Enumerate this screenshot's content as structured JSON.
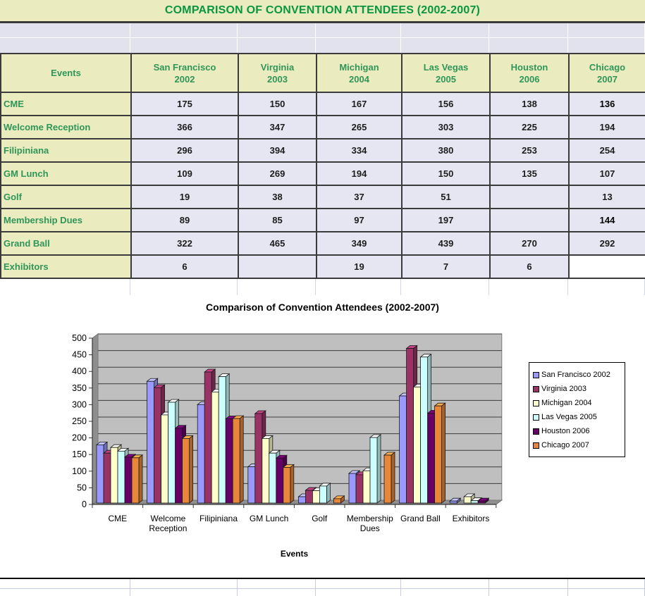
{
  "title": "COMPARISON OF CONVENTION ATTENDEES (2002-2007)",
  "colors": {
    "title_text": "#0A9640",
    "table_text": "#2F9658",
    "header_bg": "#EAEBBF",
    "cell_bg": "#E6E6F2",
    "table_border": "#3B3B3B",
    "plot_wall": "#BFBFBF",
    "plot_floor": "#8F8F8F"
  },
  "table": {
    "corner_label": "Events",
    "columns": [
      {
        "city": "San Francisco",
        "year": "2002"
      },
      {
        "city": "Virginia",
        "year": "2003"
      },
      {
        "city": "Michigan",
        "year": "2004"
      },
      {
        "city": "Las Vegas",
        "year": "2005"
      },
      {
        "city": "Houston",
        "year": "2006"
      },
      {
        "city": "Chicago",
        "year": "2007"
      }
    ],
    "rows": [
      {
        "label": "CME",
        "values": [
          "175",
          "150",
          "167",
          "156",
          "138",
          "136"
        ]
      },
      {
        "label": "Welcome Reception",
        "values": [
          "366",
          "347",
          "265",
          "303",
          "225",
          "194"
        ]
      },
      {
        "label": "Filipiniana",
        "values": [
          "296",
          "394",
          "334",
          "380",
          "253",
          "254"
        ]
      },
      {
        "label": "GM Lunch",
        "values": [
          "109",
          "269",
          "194",
          "150",
          "135",
          "107"
        ]
      },
      {
        "label": "Golf",
        "values": [
          "19",
          "38",
          "37",
          "51",
          "",
          "13"
        ]
      },
      {
        "label": "Membership Dues",
        "values": [
          "89",
          "85",
          "97",
          "197",
          "",
          "144"
        ]
      },
      {
        "label": "Grand Ball",
        "values": [
          "322",
          "465",
          "349",
          "439",
          "270",
          "292"
        ]
      },
      {
        "label": "Exhibitors",
        "values": [
          "6",
          "",
          "19",
          "7",
          "6",
          ""
        ]
      }
    ],
    "emphasized_cells": [
      [
        0,
        5
      ],
      [
        5,
        5
      ]
    ],
    "white_cells": [
      [
        7,
        5
      ]
    ]
  },
  "chart_data": {
    "type": "bar",
    "title": "Comparison of Convention Attendees (2002-2007)",
    "xlabel": "Events",
    "ylabel": "",
    "ylim": [
      0,
      500
    ],
    "ytick_step": 50,
    "grid": true,
    "legend_position": "right",
    "plot_background": "#BFBFBF",
    "style": "3d-column",
    "categories": [
      "CME",
      "Welcome Reception",
      "Filipiniana",
      "GM Lunch",
      "Golf",
      "Membership Dues",
      "Grand Ball",
      "Exhibitors"
    ],
    "series": [
      {
        "name": "San Francisco 2002",
        "color": "#9999FF",
        "values": [
          175,
          366,
          296,
          109,
          19,
          89,
          322,
          6
        ]
      },
      {
        "name": "Virginia 2003",
        "color": "#993366",
        "values": [
          150,
          347,
          394,
          269,
          38,
          85,
          465,
          null
        ]
      },
      {
        "name": "Michigan 2004",
        "color": "#FFFFCC",
        "values": [
          167,
          265,
          334,
          194,
          37,
          97,
          349,
          19
        ]
      },
      {
        "name": "Las Vegas 2005",
        "color": "#CCFFFF",
        "values": [
          156,
          303,
          380,
          150,
          51,
          197,
          439,
          7
        ]
      },
      {
        "name": "Houston 2006",
        "color": "#660066",
        "values": [
          138,
          225,
          253,
          135,
          null,
          null,
          270,
          6
        ]
      },
      {
        "name": "Chicago 2007",
        "color": "#E8873A",
        "values": [
          136,
          194,
          254,
          107,
          13,
          144,
          292,
          null
        ]
      }
    ]
  }
}
